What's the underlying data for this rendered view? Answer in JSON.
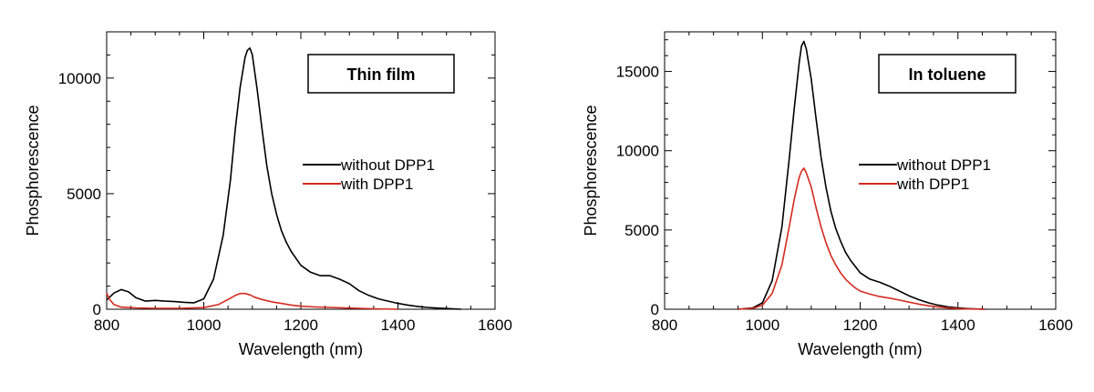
{
  "chart_data": [
    {
      "type": "line",
      "title": "Thin film",
      "xlabel": "Wavelength (nm)",
      "ylabel": "Phosphorescence",
      "xlim": [
        800,
        1600
      ],
      "ylim": [
        0,
        12000
      ],
      "xticks": [
        800,
        1000,
        1200,
        1400,
        1600
      ],
      "xtick_labels": [
        "800",
        "1000",
        "1200",
        "1400",
        "1600"
      ],
      "yticks": [
        0,
        5000,
        10000
      ],
      "ytick_labels": [
        "0",
        "5000",
        "10000"
      ],
      "legend_position": "right",
      "series": [
        {
          "name": "without DPP1",
          "color": "#000000",
          "x": [
            800,
            815,
            830,
            845,
            860,
            880,
            900,
            920,
            940,
            960,
            980,
            1000,
            1020,
            1040,
            1055,
            1065,
            1075,
            1085,
            1090,
            1095,
            1100,
            1110,
            1120,
            1130,
            1140,
            1150,
            1160,
            1170,
            1180,
            1200,
            1220,
            1240,
            1260,
            1280,
            1300,
            1320,
            1340,
            1360,
            1380,
            1400,
            1420,
            1440,
            1460,
            1480,
            1500,
            1530
          ],
          "y": [
            400,
            700,
            850,
            750,
            500,
            350,
            380,
            350,
            330,
            300,
            280,
            450,
            1300,
            3200,
            5600,
            7800,
            9600,
            10900,
            11200,
            11300,
            11000,
            9500,
            7800,
            6200,
            5000,
            4100,
            3400,
            2900,
            2500,
            1900,
            1600,
            1450,
            1450,
            1300,
            1100,
            800,
            600,
            450,
            350,
            250,
            180,
            120,
            80,
            50,
            30,
            0
          ]
        },
        {
          "name": "with DPP1",
          "color": "#d42a1f",
          "x": [
            800,
            805,
            815,
            830,
            860,
            900,
            950,
            1000,
            1030,
            1050,
            1065,
            1075,
            1085,
            1095,
            1105,
            1120,
            1140,
            1160,
            1180,
            1200,
            1230,
            1260,
            1300,
            1350,
            1400
          ],
          "y": [
            700,
            450,
            200,
            90,
            60,
            40,
            40,
            70,
            200,
            420,
            600,
            680,
            680,
            620,
            520,
            420,
            320,
            250,
            180,
            130,
            100,
            80,
            50,
            20,
            0
          ]
        }
      ]
    },
    {
      "type": "line",
      "title": "In toluene",
      "xlabel": "Wavelength (nm)",
      "ylabel": "Phosphorescence",
      "xlim": [
        800,
        1600
      ],
      "ylim": [
        0,
        17500
      ],
      "xticks": [
        800,
        1000,
        1200,
        1400,
        1600
      ],
      "xtick_labels": [
        "800",
        "1000",
        "1200",
        "1400",
        "1600"
      ],
      "yticks": [
        0,
        5000,
        10000,
        15000
      ],
      "ytick_labels": [
        "0",
        "5000",
        "10000",
        "15000"
      ],
      "legend_position": "right",
      "series": [
        {
          "name": "without DPP1",
          "color": "#000000",
          "x": [
            950,
            980,
            1000,
            1020,
            1040,
            1055,
            1065,
            1075,
            1080,
            1085,
            1090,
            1100,
            1110,
            1120,
            1130,
            1140,
            1150,
            1160,
            1170,
            1180,
            1190,
            1200,
            1220,
            1240,
            1260,
            1280,
            1300,
            1320,
            1340,
            1360,
            1380,
            1400,
            1420,
            1455
          ],
          "y": [
            0,
            80,
            400,
            1800,
            5200,
            9500,
            12600,
            15500,
            16600,
            16900,
            16400,
            14500,
            12000,
            9600,
            7700,
            6200,
            5100,
            4300,
            3600,
            3100,
            2700,
            2300,
            1900,
            1700,
            1450,
            1150,
            850,
            600,
            400,
            250,
            150,
            80,
            40,
            0
          ]
        },
        {
          "name": "with DPP1",
          "color": "#d42a1f",
          "x": [
            950,
            980,
            1000,
            1020,
            1040,
            1055,
            1065,
            1075,
            1080,
            1085,
            1090,
            1100,
            1110,
            1120,
            1130,
            1140,
            1150,
            1160,
            1170,
            1180,
            1190,
            1200,
            1220,
            1240,
            1260,
            1280,
            1300,
            1320,
            1340,
            1360,
            1380,
            1400,
            1420,
            1455
          ],
          "y": [
            0,
            50,
            250,
            1000,
            2800,
            5200,
            6900,
            8300,
            8700,
            8900,
            8600,
            7700,
            6400,
            5200,
            4200,
            3400,
            2800,
            2300,
            1900,
            1600,
            1350,
            1150,
            950,
            800,
            700,
            580,
            450,
            320,
            220,
            140,
            80,
            40,
            20,
            0
          ]
        }
      ]
    }
  ]
}
